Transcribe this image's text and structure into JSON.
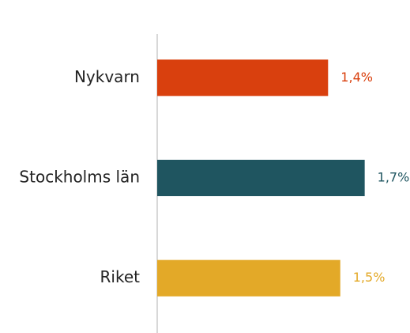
{
  "chart_data": {
    "type": "bar",
    "orientation": "horizontal",
    "categories": [
      "Nykvarn",
      "Stockholms län",
      "Riket"
    ],
    "values": [
      1.4,
      1.7,
      1.5
    ],
    "value_labels": [
      "1,4%",
      "1,7%",
      "1,5%"
    ],
    "colors": [
      "#d9400e",
      "#1f5560",
      "#e3a928"
    ],
    "xlim": [
      0,
      2
    ]
  }
}
